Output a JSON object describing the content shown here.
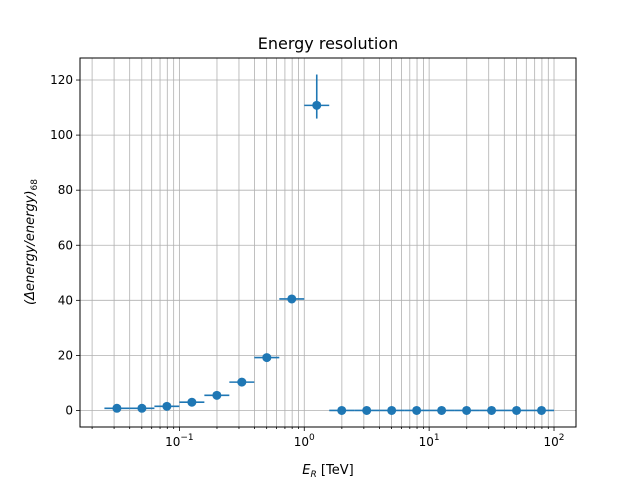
{
  "chart_data": {
    "type": "scatter",
    "title": "Energy resolution",
    "xlabel_prefix": "E",
    "xlabel_sub": "R",
    "xlabel_suffix": " [TeV]",
    "ylabel_main": "(Δenergy/energy)",
    "ylabel_sub": "68",
    "xscale": "log",
    "xlim": [
      0.016,
      150
    ],
    "ylim": [
      -6,
      128
    ],
    "grid": true,
    "grid_minor_x": true,
    "y_ticks": [
      0,
      20,
      40,
      60,
      80,
      100,
      120
    ],
    "y_tick_labels": [
      "0",
      "20",
      "40",
      "60",
      "80",
      "100",
      "120"
    ],
    "x_major_ticks": [
      0.1,
      1,
      10,
      100
    ],
    "x_tick_labels": [
      {
        "base": "10",
        "exp": "−1"
      },
      {
        "base": "10",
        "exp": "0"
      },
      {
        "base": "10",
        "exp": "1"
      },
      {
        "base": "10",
        "exp": "2"
      }
    ],
    "color": "#1f77b4",
    "series": [
      {
        "points": [
          {
            "x": 0.0316,
            "x_lo": 0.0251,
            "x_hi": 0.0398,
            "y": 0.8,
            "y_lo": 0.8,
            "y_hi": 0.8
          },
          {
            "x": 0.0501,
            "x_lo": 0.0398,
            "x_hi": 0.0631,
            "y": 0.8,
            "y_lo": 0.8,
            "y_hi": 0.8
          },
          {
            "x": 0.0794,
            "x_lo": 0.0631,
            "x_hi": 0.1,
            "y": 1.5,
            "y_lo": 1.5,
            "y_hi": 1.5
          },
          {
            "x": 0.1259,
            "x_lo": 0.1,
            "x_hi": 0.1585,
            "y": 3.0,
            "y_lo": 3.0,
            "y_hi": 3.0
          },
          {
            "x": 0.1995,
            "x_lo": 0.1585,
            "x_hi": 0.2512,
            "y": 5.5,
            "y_lo": 5.5,
            "y_hi": 5.5
          },
          {
            "x": 0.3162,
            "x_lo": 0.2512,
            "x_hi": 0.3981,
            "y": 10.3,
            "y_lo": 10.3,
            "y_hi": 10.3
          },
          {
            "x": 0.5012,
            "x_lo": 0.3981,
            "x_hi": 0.631,
            "y": 19.2,
            "y_lo": 19.2,
            "y_hi": 19.2
          },
          {
            "x": 0.7943,
            "x_lo": 0.631,
            "x_hi": 1.0,
            "y": 40.5,
            "y_lo": 40.5,
            "y_hi": 40.5
          },
          {
            "x": 1.2589,
            "x_lo": 1.0,
            "x_hi": 1.5849,
            "y": 110.8,
            "y_lo": 106.0,
            "y_hi": 122.0
          },
          {
            "x": 1.9953,
            "x_lo": 1.5849,
            "x_hi": 2.5119,
            "y": 0,
            "y_lo": 0,
            "y_hi": 0
          },
          {
            "x": 3.1623,
            "x_lo": 2.5119,
            "x_hi": 3.9811,
            "y": 0,
            "y_lo": 0,
            "y_hi": 0
          },
          {
            "x": 5.0119,
            "x_lo": 3.9811,
            "x_hi": 6.3096,
            "y": 0,
            "y_lo": 0,
            "y_hi": 0
          },
          {
            "x": 7.9433,
            "x_lo": 6.3096,
            "x_hi": 10.0,
            "y": 0,
            "y_lo": 0,
            "y_hi": 0
          },
          {
            "x": 12.589,
            "x_lo": 10.0,
            "x_hi": 15.849,
            "y": 0,
            "y_lo": 0,
            "y_hi": 0
          },
          {
            "x": 19.953,
            "x_lo": 15.849,
            "x_hi": 25.119,
            "y": 0,
            "y_lo": 0,
            "y_hi": 0
          },
          {
            "x": 31.623,
            "x_lo": 25.119,
            "x_hi": 39.811,
            "y": 0,
            "y_lo": 0,
            "y_hi": 0
          },
          {
            "x": 50.119,
            "x_lo": 39.811,
            "x_hi": 63.096,
            "y": 0,
            "y_lo": 0,
            "y_hi": 0
          },
          {
            "x": 79.433,
            "x_lo": 63.096,
            "x_hi": 100.0,
            "y": 0,
            "y_lo": 0,
            "y_hi": 0
          }
        ]
      }
    ]
  }
}
